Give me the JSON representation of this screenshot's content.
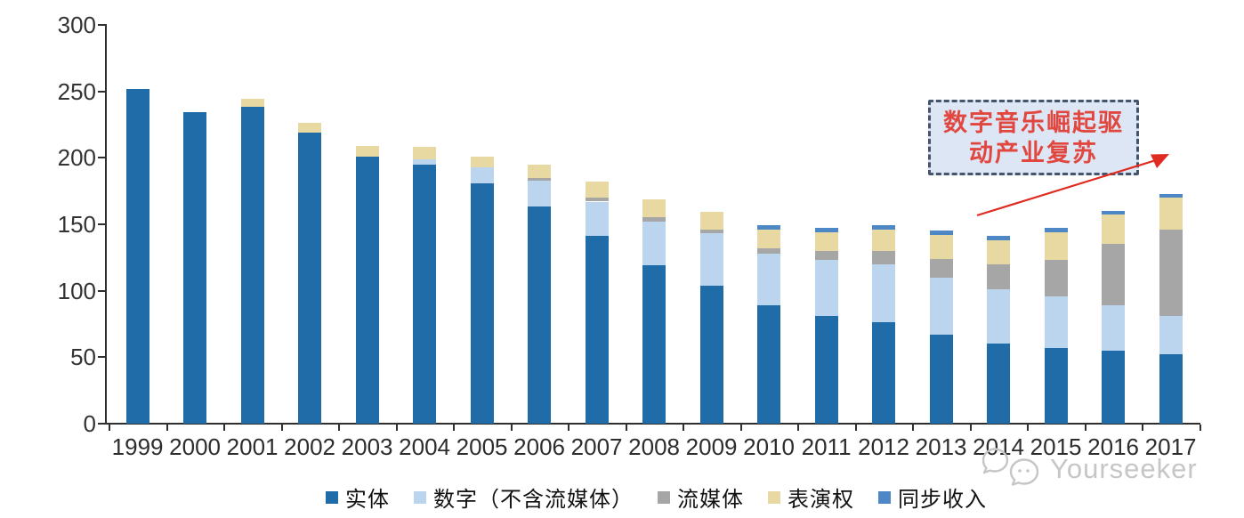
{
  "chart_data": {
    "type": "bar",
    "stacked": true,
    "title": "",
    "xlabel": "",
    "ylabel": "",
    "ylim": [
      0,
      300
    ],
    "y_ticks": [
      0,
      50,
      100,
      150,
      200,
      250,
      300
    ],
    "grid": false,
    "legend_position": "bottom",
    "categories": [
      "1999",
      "2000",
      "2001",
      "2002",
      "2003",
      "2004",
      "2005",
      "2006",
      "2007",
      "2008",
      "2009",
      "2010",
      "2011",
      "2012",
      "2013",
      "2014",
      "2015",
      "2016",
      "2017"
    ],
    "series": [
      {
        "key": "physical",
        "name": "实体",
        "color": "#1F6CA9",
        "values": [
          252,
          234,
          238,
          219,
          201,
          195,
          181,
          163,
          141,
          119,
          104,
          89,
          81,
          76,
          67,
          60,
          57,
          55,
          52
        ]
      },
      {
        "key": "digital",
        "name": "数字（不含流媒体）",
        "color": "#BCD5EE",
        "values": [
          0,
          0,
          0,
          0,
          0,
          4,
          12,
          20,
          26,
          33,
          39,
          39,
          42,
          44,
          43,
          41,
          39,
          34,
          29
        ]
      },
      {
        "key": "streaming",
        "name": "流媒体",
        "color": "#A6A6A6",
        "values": [
          0,
          0,
          0,
          0,
          0,
          0,
          0,
          2,
          3,
          3,
          3,
          4,
          7,
          10,
          14,
          19,
          27,
          46,
          65
        ]
      },
      {
        "key": "performance",
        "name": "表演权",
        "color": "#E7D9A1",
        "values": [
          0,
          0,
          6,
          7,
          8,
          9,
          8,
          10,
          12,
          14,
          13,
          14,
          14,
          16,
          18,
          18,
          21,
          22,
          24
        ]
      },
      {
        "key": "sync",
        "name": "同步收入",
        "color": "#4E87C6",
        "values": [
          0,
          0,
          0,
          0,
          0,
          0,
          0,
          0,
          0,
          0,
          0,
          3,
          3,
          3,
          3,
          3,
          3,
          3,
          3
        ]
      }
    ]
  },
  "annotation": {
    "line1": "数字音乐崛起驱",
    "line2": "动产业复苏",
    "text_color": "#E1473F",
    "box_fill": "#DCE6F5",
    "box_border": "#44546A",
    "arrow_color": "#E02B20"
  },
  "watermark": {
    "text": "Yourseeker",
    "icon": "speech-bubbles-icon",
    "color": "#C6C6C6"
  }
}
